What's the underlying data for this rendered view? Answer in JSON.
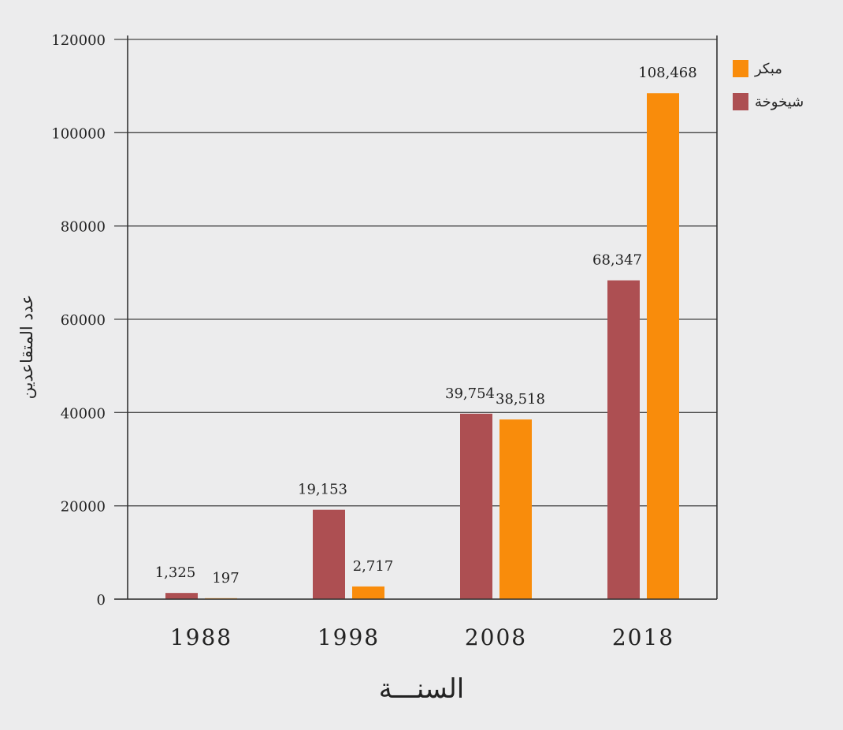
{
  "chart_data": {
    "type": "bar",
    "title": "",
    "xlabel": "السنـــة",
    "ylabel": "عدد المتقاعدين",
    "categories": [
      "1988",
      "1998",
      "2008",
      "2018"
    ],
    "ylim": [
      0,
      120000
    ],
    "yticks": [
      "0",
      "20000",
      "40000",
      "60000",
      "80000",
      "100000",
      "120000"
    ],
    "grid": true,
    "legend_position": "top-right",
    "series": [
      {
        "name": "شيخوخة",
        "color": "#ad4f52",
        "values": [
          1325,
          19153,
          39754,
          68347
        ],
        "labels": [
          "1,325",
          "19,153",
          "39,754",
          "68,347"
        ]
      },
      {
        "name": "مبكر",
        "color": "#f98c0b",
        "values": [
          197,
          2717,
          38518,
          108468
        ],
        "labels": [
          "197",
          "2,717",
          "38,518",
          "108,468"
        ]
      }
    ]
  }
}
